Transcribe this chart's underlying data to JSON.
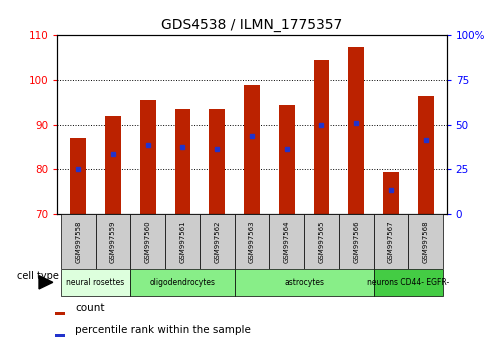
{
  "title": "GDS4538 / ILMN_1775357",
  "samples": [
    "GSM997558",
    "GSM997559",
    "GSM997560",
    "GSM997561",
    "GSM997562",
    "GSM997563",
    "GSM997564",
    "GSM997565",
    "GSM997566",
    "GSM997567",
    "GSM997568"
  ],
  "bar_values": [
    87,
    92,
    95.5,
    93.5,
    93.5,
    99,
    94.5,
    104.5,
    107.5,
    79.5,
    96.5
  ],
  "percentile_values": [
    80,
    83.5,
    85.5,
    85,
    84.5,
    87.5,
    84.5,
    90,
    90.5,
    75.5,
    86.5
  ],
  "ylim_left": [
    70,
    110
  ],
  "ylim_right": [
    0,
    100
  ],
  "yticks_left": [
    70,
    80,
    90,
    100,
    110
  ],
  "yticks_right": [
    0,
    25,
    50,
    75,
    100
  ],
  "ytick_labels_right": [
    "0",
    "25",
    "50",
    "75",
    "100%"
  ],
  "bar_color": "#bb2200",
  "percentile_color": "#2233cc",
  "bar_width": 0.45,
  "cell_types": [
    {
      "label": "neural rosettes",
      "start": 0,
      "end": 2,
      "color": "#ddffdd"
    },
    {
      "label": "oligodendrocytes",
      "start": 2,
      "end": 5,
      "color": "#88ee88"
    },
    {
      "label": "astrocytes",
      "start": 5,
      "end": 9,
      "color": "#88ee88"
    },
    {
      "label": "neurons CD44- EGFR-",
      "start": 9,
      "end": 11,
      "color": "#44cc44"
    }
  ],
  "cell_type_label": "cell type",
  "legend_count_label": "count",
  "legend_percentile_label": "percentile rank within the sample",
  "sample_box_color": "#cccccc",
  "background_color": "#ffffff"
}
